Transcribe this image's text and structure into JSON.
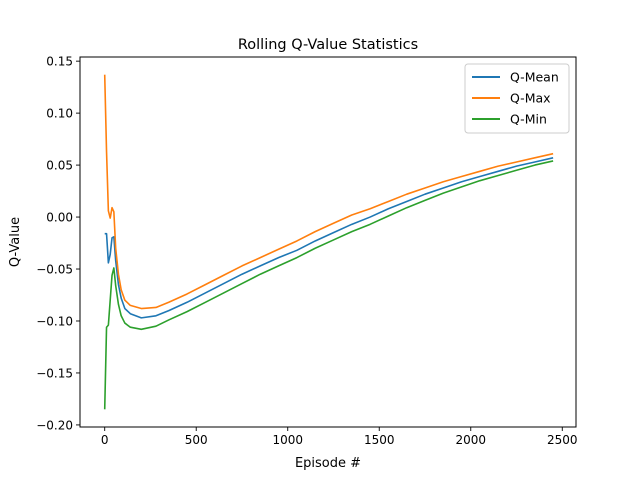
{
  "chart_data": {
    "type": "line",
    "title": "Rolling Q-Value Statistics",
    "xlabel": "Episode #",
    "ylabel": "Q-Value",
    "xlim": [
      -135,
      2575
    ],
    "ylim": [
      -0.202,
      0.154
    ],
    "xticks": [
      0,
      500,
      1000,
      1500,
      2000,
      2500
    ],
    "xtick_labels": [
      "0",
      "500",
      "1000",
      "1500",
      "2000",
      "2500"
    ],
    "yticks": [
      -0.2,
      -0.15,
      -0.1,
      -0.05,
      0.0,
      0.05,
      0.1,
      0.15
    ],
    "ytick_labels": [
      "−0.20",
      "−0.15",
      "−0.10",
      "−0.05",
      "0.00",
      "0.05",
      "0.10",
      "0.15"
    ],
    "grid": false,
    "legend_position": "upper right",
    "x": [
      0,
      10,
      20,
      30,
      40,
      50,
      60,
      75,
      90,
      110,
      140,
      200,
      280,
      350,
      450,
      550,
      650,
      750,
      850,
      950,
      1050,
      1150,
      1250,
      1350,
      1450,
      1550,
      1650,
      1750,
      1850,
      1950,
      2050,
      2150,
      2250,
      2350,
      2450
    ],
    "series": [
      {
        "name": "Q-Mean",
        "color": "#1f77b4",
        "values": [
          -0.016,
          -0.016,
          -0.044,
          -0.036,
          -0.02,
          -0.019,
          -0.042,
          -0.065,
          -0.078,
          -0.088,
          -0.093,
          -0.097,
          -0.095,
          -0.09,
          -0.082,
          -0.073,
          -0.064,
          -0.055,
          -0.047,
          -0.039,
          -0.032,
          -0.023,
          -0.015,
          -0.007,
          0.0,
          0.008,
          0.015,
          0.022,
          0.028,
          0.034,
          0.039,
          0.044,
          0.049,
          0.053,
          0.057
        ]
      },
      {
        "name": "Q-Max",
        "color": "#ff7f0e",
        "values": [
          0.137,
          0.063,
          0.006,
          -0.001,
          0.009,
          0.005,
          -0.03,
          -0.055,
          -0.07,
          -0.08,
          -0.085,
          -0.088,
          -0.087,
          -0.082,
          -0.074,
          -0.065,
          -0.056,
          -0.047,
          -0.039,
          -0.031,
          -0.023,
          -0.014,
          -0.006,
          0.002,
          0.008,
          0.015,
          0.022,
          0.028,
          0.034,
          0.039,
          0.044,
          0.049,
          0.053,
          0.057,
          0.061
        ]
      },
      {
        "name": "Q-Min",
        "color": "#2ca02c",
        "values": [
          -0.185,
          -0.106,
          -0.104,
          -0.08,
          -0.056,
          -0.049,
          -0.066,
          -0.084,
          -0.095,
          -0.102,
          -0.106,
          -0.108,
          -0.105,
          -0.099,
          -0.091,
          -0.082,
          -0.073,
          -0.064,
          -0.055,
          -0.047,
          -0.039,
          -0.03,
          -0.022,
          -0.014,
          -0.007,
          0.001,
          0.009,
          0.016,
          0.023,
          0.029,
          0.035,
          0.04,
          0.045,
          0.05,
          0.054
        ]
      }
    ]
  }
}
